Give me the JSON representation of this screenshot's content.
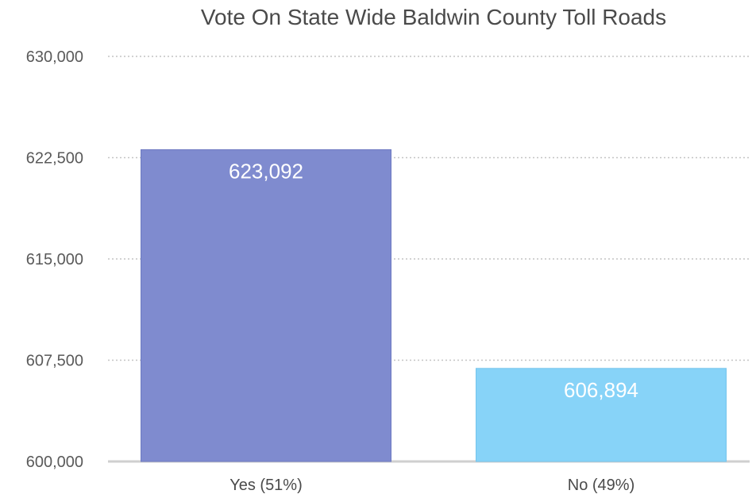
{
  "chart_data": {
    "type": "bar",
    "title": "Vote On State Wide Baldwin County Toll Roads",
    "categories": [
      "Yes (51%)",
      "No (49%)"
    ],
    "values": [
      623092,
      606894
    ],
    "data_labels": [
      "623,092",
      "606,894"
    ],
    "colors": [
      "#7f8bcf",
      "#87d3f8"
    ],
    "ylim": [
      600000,
      630000
    ],
    "yticks": [
      600000,
      607500,
      615000,
      622500,
      630000
    ],
    "ytick_labels": [
      "600,000",
      "607,500",
      "615,000",
      "622,500",
      "630,000"
    ],
    "grid": true,
    "legend": "none"
  }
}
